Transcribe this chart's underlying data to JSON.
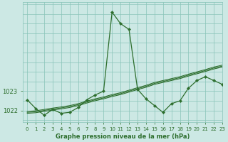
{
  "title": "Graphe pression niveau de la mer (hPa)",
  "bg_color": "#cce8e4",
  "grid_color": "#88c4b8",
  "line_color": "#2d6e2d",
  "xlim": [
    -0.5,
    23
  ],
  "ylim": [
    1021.4,
    1027.6
  ],
  "ytick_vals": [
    1022,
    1023
  ],
  "xtick_vals": [
    0,
    1,
    2,
    3,
    4,
    5,
    6,
    7,
    8,
    9,
    10,
    11,
    12,
    13,
    14,
    15,
    16,
    17,
    18,
    19,
    20,
    21,
    22,
    23
  ],
  "series_main": [
    1022.55,
    1022.1,
    1021.75,
    1022.05,
    1021.85,
    1021.9,
    1022.15,
    1022.55,
    1022.8,
    1023.0,
    1027.1,
    1026.5,
    1026.2,
    1023.1,
    1022.6,
    1022.25,
    1021.9,
    1022.35,
    1022.5,
    1023.15,
    1023.55,
    1023.75,
    1023.55,
    1023.35
  ],
  "series_linear": [
    [
      1021.85,
      1021.88,
      1021.95,
      1022.02,
      1022.08,
      1022.15,
      1022.25,
      1022.38,
      1022.5,
      1022.6,
      1022.72,
      1022.82,
      1022.95,
      1023.08,
      1023.2,
      1023.35,
      1023.45,
      1023.55,
      1023.65,
      1023.78,
      1023.9,
      1024.02,
      1024.15,
      1024.25
    ],
    [
      1021.9,
      1021.93,
      1022.0,
      1022.07,
      1022.13,
      1022.2,
      1022.3,
      1022.43,
      1022.55,
      1022.65,
      1022.77,
      1022.87,
      1023.0,
      1023.13,
      1023.25,
      1023.4,
      1023.5,
      1023.6,
      1023.7,
      1023.83,
      1023.95,
      1024.07,
      1024.2,
      1024.3
    ],
    [
      1021.95,
      1021.98,
      1022.05,
      1022.12,
      1022.18,
      1022.25,
      1022.35,
      1022.48,
      1022.6,
      1022.7,
      1022.82,
      1022.92,
      1023.05,
      1023.18,
      1023.3,
      1023.45,
      1023.55,
      1023.65,
      1023.75,
      1023.88,
      1024.0,
      1024.12,
      1024.25,
      1024.35
    ]
  ],
  "tick_fontsize": 5.5,
  "xlabel_fontsize": 6.0
}
